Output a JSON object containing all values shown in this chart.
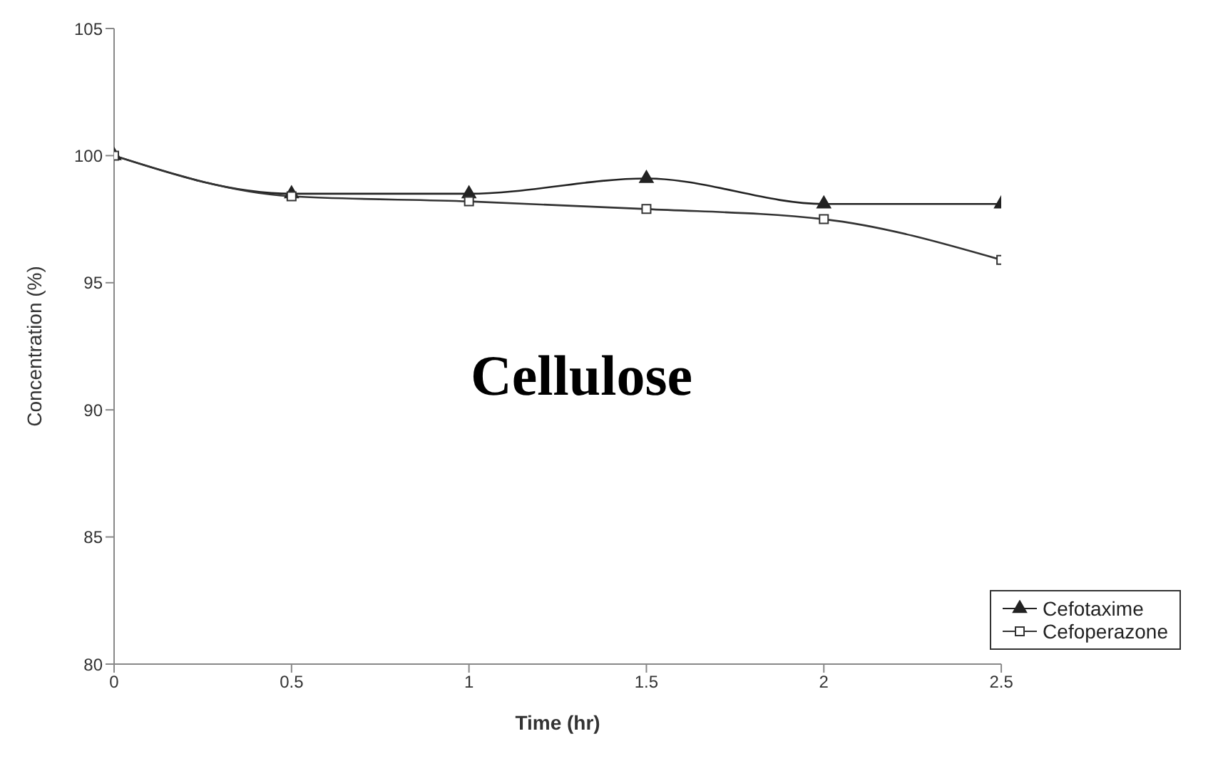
{
  "chart_data": {
    "type": "line",
    "xlabel": "Time (hr)",
    "ylabel": "Concentration (%)",
    "x": [
      0,
      0.5,
      1,
      1.5,
      2,
      2.5
    ],
    "series": [
      {
        "name": "Cefotaxime",
        "color": "#222222",
        "marker": "triangle",
        "values": [
          100,
          98.5,
          98.5,
          99.1,
          98.1,
          98.1
        ]
      },
      {
        "name": "Cefoperazone",
        "color": "#333333",
        "marker": "square",
        "values": [
          100,
          98.4,
          98.2,
          97.9,
          97.5,
          95.9
        ]
      }
    ],
    "xlim": [
      0,
      2.5
    ],
    "xticks": [
      0,
      0.5,
      1,
      1.5,
      2,
      2.5
    ],
    "ylim": [
      80,
      105
    ],
    "yticks": [
      80,
      85,
      90,
      95,
      100,
      105
    ],
    "legend": "bottom right",
    "grid": false,
    "line_style": "solid",
    "annotations": [
      "Cellulose"
    ]
  }
}
